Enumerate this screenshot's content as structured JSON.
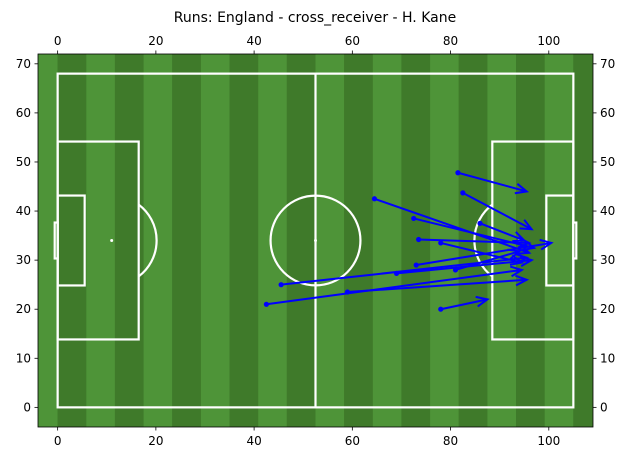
{
  "chart_data": {
    "type": "arrow-map",
    "title": "Runs: England - cross_receiver - H. Kane",
    "xlim": [
      -4,
      109
    ],
    "ylim": [
      -4,
      72
    ],
    "x_ticks": [
      0,
      20,
      40,
      60,
      80,
      100
    ],
    "y_ticks": [
      0,
      10,
      20,
      30,
      40,
      50,
      60,
      70
    ],
    "pitch_length": 105,
    "pitch_width": 68,
    "colors": {
      "grass_dark": "#3f7a2a",
      "grass_light": "#4e9438",
      "lines": "#ffffff",
      "arrows": "#0000ff"
    },
    "runs": [
      {
        "x": 81.5,
        "y": 47.8,
        "end_x": 95.5,
        "end_y": 44.0
      },
      {
        "x": 82.5,
        "y": 43.7,
        "end_x": 96.5,
        "end_y": 36.3
      },
      {
        "x": 64.5,
        "y": 42.5,
        "end_x": 96.0,
        "end_y": 31.5
      },
      {
        "x": 72.5,
        "y": 38.5,
        "end_x": 97.0,
        "end_y": 32.5
      },
      {
        "x": 86.0,
        "y": 37.5,
        "end_x": 95.0,
        "end_y": 34.0
      },
      {
        "x": 73.5,
        "y": 34.2,
        "end_x": 96.0,
        "end_y": 33.5
      },
      {
        "x": 78.0,
        "y": 33.5,
        "end_x": 94.5,
        "end_y": 29.5
      },
      {
        "x": 73.0,
        "y": 29.0,
        "end_x": 100.5,
        "end_y": 33.5
      },
      {
        "x": 69.0,
        "y": 27.3,
        "end_x": 96.5,
        "end_y": 30.0
      },
      {
        "x": 81.0,
        "y": 28.0,
        "end_x": 94.0,
        "end_y": 31.8
      },
      {
        "x": 45.5,
        "y": 25.0,
        "end_x": 95.5,
        "end_y": 30.5
      },
      {
        "x": 42.5,
        "y": 21.0,
        "end_x": 94.5,
        "end_y": 28.0
      },
      {
        "x": 59.0,
        "y": 23.5,
        "end_x": 95.5,
        "end_y": 26.0
      },
      {
        "x": 78.0,
        "y": 20.0,
        "end_x": 87.5,
        "end_y": 22.0
      }
    ]
  }
}
